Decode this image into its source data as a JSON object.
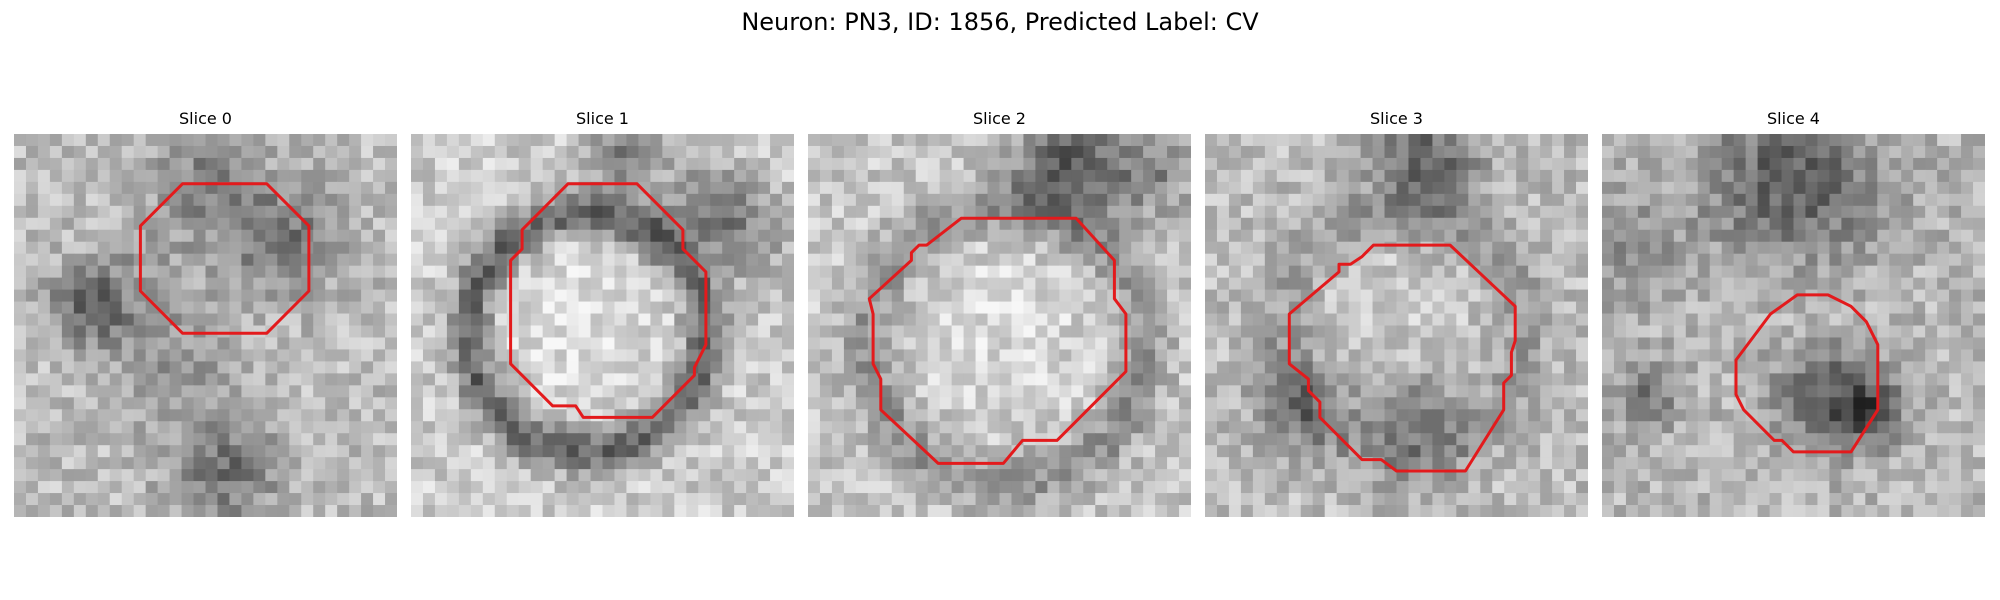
{
  "figure": {
    "title": "Neuron: PN3, ID: 1856, Predicted Label: CV"
  },
  "slices": [
    {
      "title": "Slice 0"
    },
    {
      "title": "Slice 1"
    },
    {
      "title": "Slice 2"
    },
    {
      "title": "Slice 3"
    },
    {
      "title": "Slice 4"
    }
  ],
  "contour_color": "#e31a1c",
  "colormap": "grayscale"
}
